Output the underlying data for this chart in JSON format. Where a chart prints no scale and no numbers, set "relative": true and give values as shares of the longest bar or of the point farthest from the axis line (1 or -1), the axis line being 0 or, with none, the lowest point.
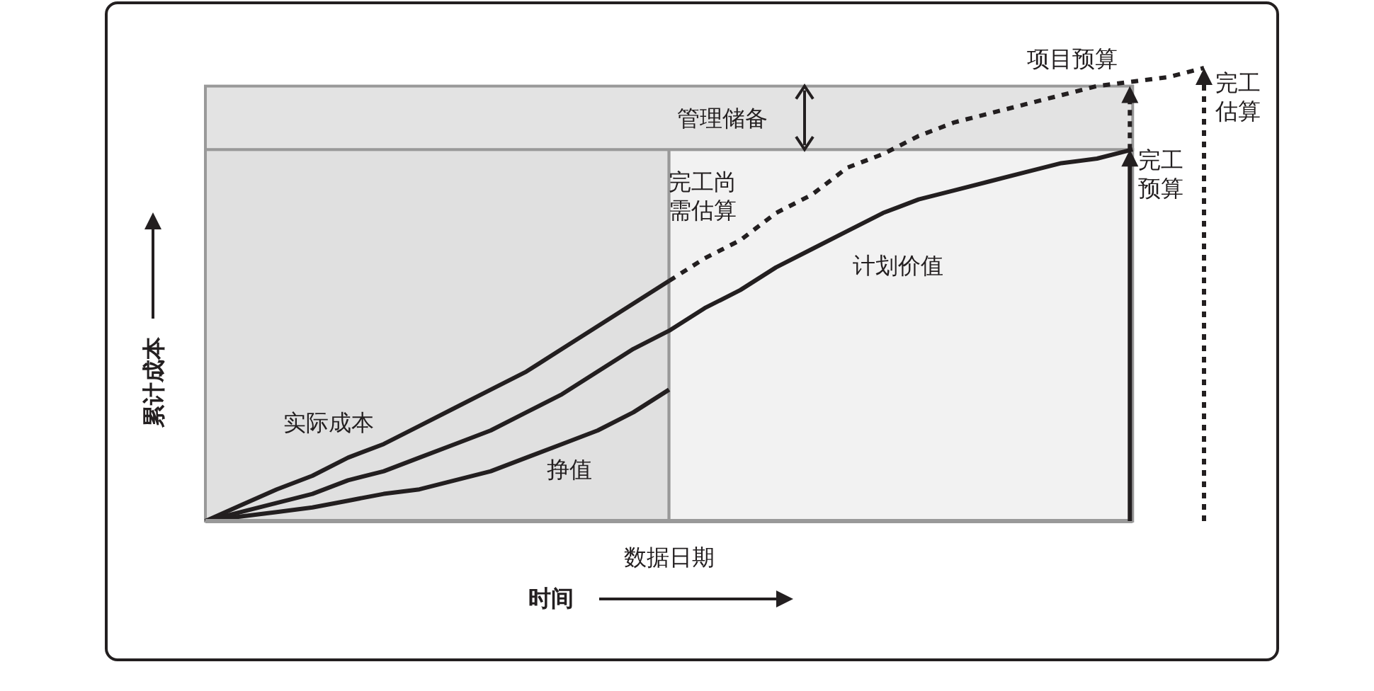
{
  "chart_data": {
    "type": "line",
    "relative": true,
    "xlabel": "时间",
    "ylabel": "累计成本",
    "legend": false,
    "grid": false,
    "categories": [
      null,
      null,
      null,
      null,
      null,
      null,
      null,
      null,
      null,
      null,
      null,
      null,
      null,
      null,
      null,
      null,
      null,
      null,
      null,
      null,
      null,
      null,
      null,
      null,
      null,
      null,
      null,
      null,
      null
    ],
    "series": [
      {
        "name": "实际成本",
        "color": "#231f20",
        "line_style": "solid",
        "values": [
          0,
          0.035,
          0.07,
          0.1,
          0.14,
          0.17,
          0.21,
          0.25,
          0.29,
          0.33,
          0.38,
          0.43,
          0.48,
          0.53,
          null,
          null,
          null,
          null,
          null,
          null,
          null,
          null,
          null,
          null,
          null,
          null,
          null,
          null,
          null
        ]
      },
      {
        "name": "挣值",
        "color": "#231f20",
        "line_style": "solid",
        "values": [
          0,
          0.01,
          0.02,
          0.03,
          0.045,
          0.06,
          0.07,
          0.09,
          0.11,
          0.14,
          0.17,
          0.2,
          0.24,
          0.29,
          null,
          null,
          null,
          null,
          null,
          null,
          null,
          null,
          null,
          null,
          null,
          null,
          null,
          null,
          null
        ]
      },
      {
        "name": "计划价值",
        "color": "#231f20",
        "line_style": "solid",
        "values": [
          0,
          0.02,
          0.04,
          0.06,
          0.09,
          0.11,
          0.14,
          0.17,
          0.2,
          0.24,
          0.28,
          0.33,
          0.38,
          0.42,
          0.47,
          0.51,
          0.56,
          0.6,
          0.64,
          0.68,
          0.71,
          0.73,
          0.75,
          0.77,
          0.79,
          0.8,
          0.82,
          null,
          null
        ]
      },
      {
        "name": "完工尚需估算",
        "color": "#231f20",
        "line_style": "dashed",
        "values": [
          null,
          null,
          null,
          null,
          null,
          null,
          null,
          null,
          null,
          null,
          null,
          null,
          null,
          0.53,
          0.58,
          0.62,
          0.68,
          0.72,
          0.78,
          0.81,
          0.85,
          0.88,
          0.9,
          0.92,
          0.94,
          0.96,
          0.97,
          0.98,
          1.0
        ]
      }
    ],
    "bands": [
      {
        "axis": "y",
        "from": 0.82,
        "to": 0.96,
        "label": "管理储备",
        "color": "#e3e3e3"
      }
    ],
    "annotations": [
      "完工预算",
      "完工估算",
      "项目预算",
      "数据日期"
    ]
  }
}
